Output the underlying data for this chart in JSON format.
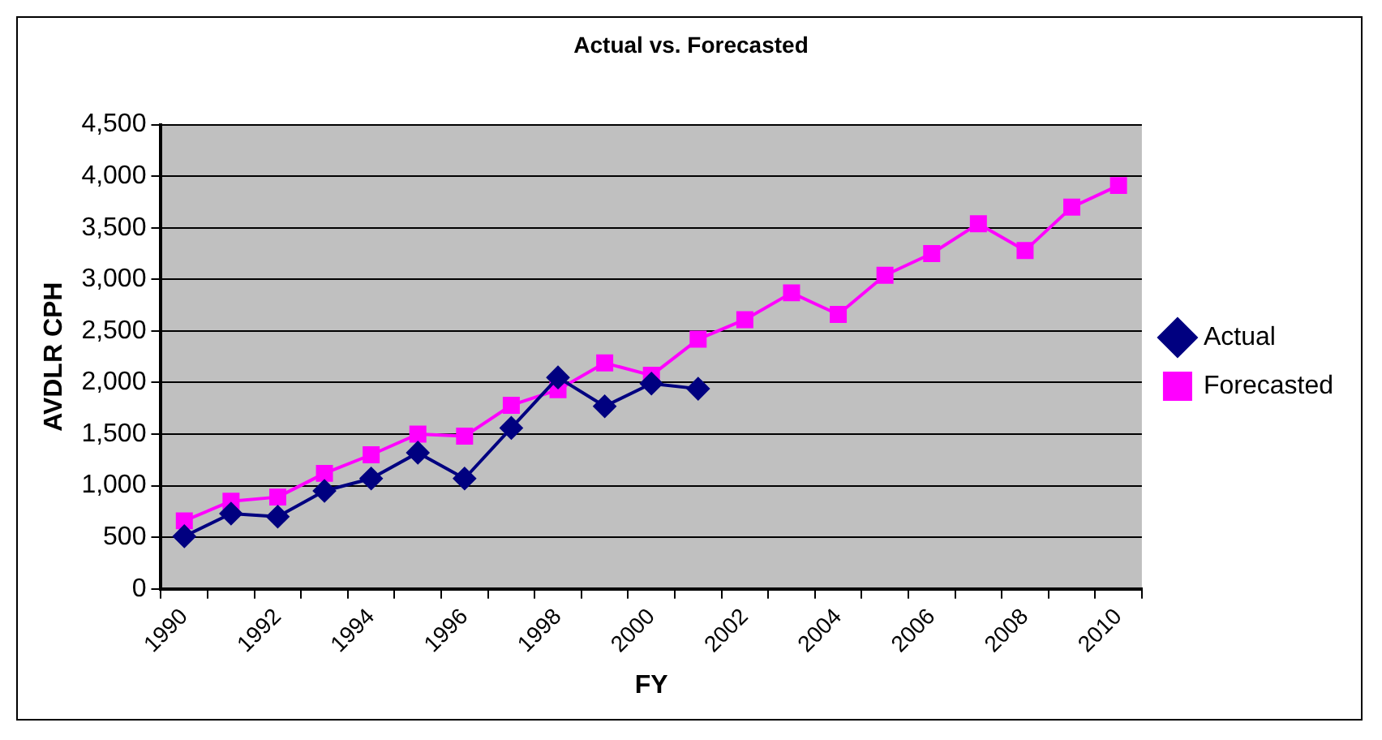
{
  "chart_data": {
    "type": "line",
    "title": "Actual vs. Forecasted",
    "xlabel": "FY",
    "ylabel": "AVDLR CPH",
    "categories": [
      "1990",
      null,
      "1992",
      null,
      "1994",
      null,
      "1996",
      null,
      "1998",
      null,
      "2000",
      null,
      "2002",
      null,
      "2004",
      null,
      "2006",
      null,
      "2008",
      null,
      "2010"
    ],
    "series": [
      {
        "name": "Actual",
        "color": "#000080",
        "marker": "diamond",
        "values": [
          510,
          730,
          700,
          950,
          1070,
          1320,
          1070,
          1560,
          2050,
          1770,
          1990,
          1940,
          null,
          null,
          null,
          null,
          null,
          null,
          null,
          null,
          null
        ]
      },
      {
        "name": "Forecasted",
        "color": "#ff00ff",
        "marker": "square",
        "values": [
          660,
          850,
          890,
          1120,
          1300,
          1500,
          1480,
          1780,
          1930,
          2190,
          2070,
          2420,
          2610,
          2870,
          2660,
          3040,
          3250,
          3540,
          3280,
          3700,
          3910
        ]
      }
    ],
    "ylim": [
      0,
      4500
    ],
    "yticks": [
      0,
      500,
      {
        "value": 1000,
        "label": "1,000"
      },
      {
        "value": 1500,
        "label": "1,500"
      },
      {
        "value": 2000,
        "label": "2,000"
      },
      {
        "value": 2500,
        "label": "2,500"
      },
      {
        "value": 3000,
        "label": "3,000"
      },
      {
        "value": 3500,
        "label": "3,500"
      },
      {
        "value": 4000,
        "label": "4,000"
      },
      {
        "value": 4500,
        "label": "4,500"
      }
    ],
    "grid": "y",
    "legend": "right"
  }
}
